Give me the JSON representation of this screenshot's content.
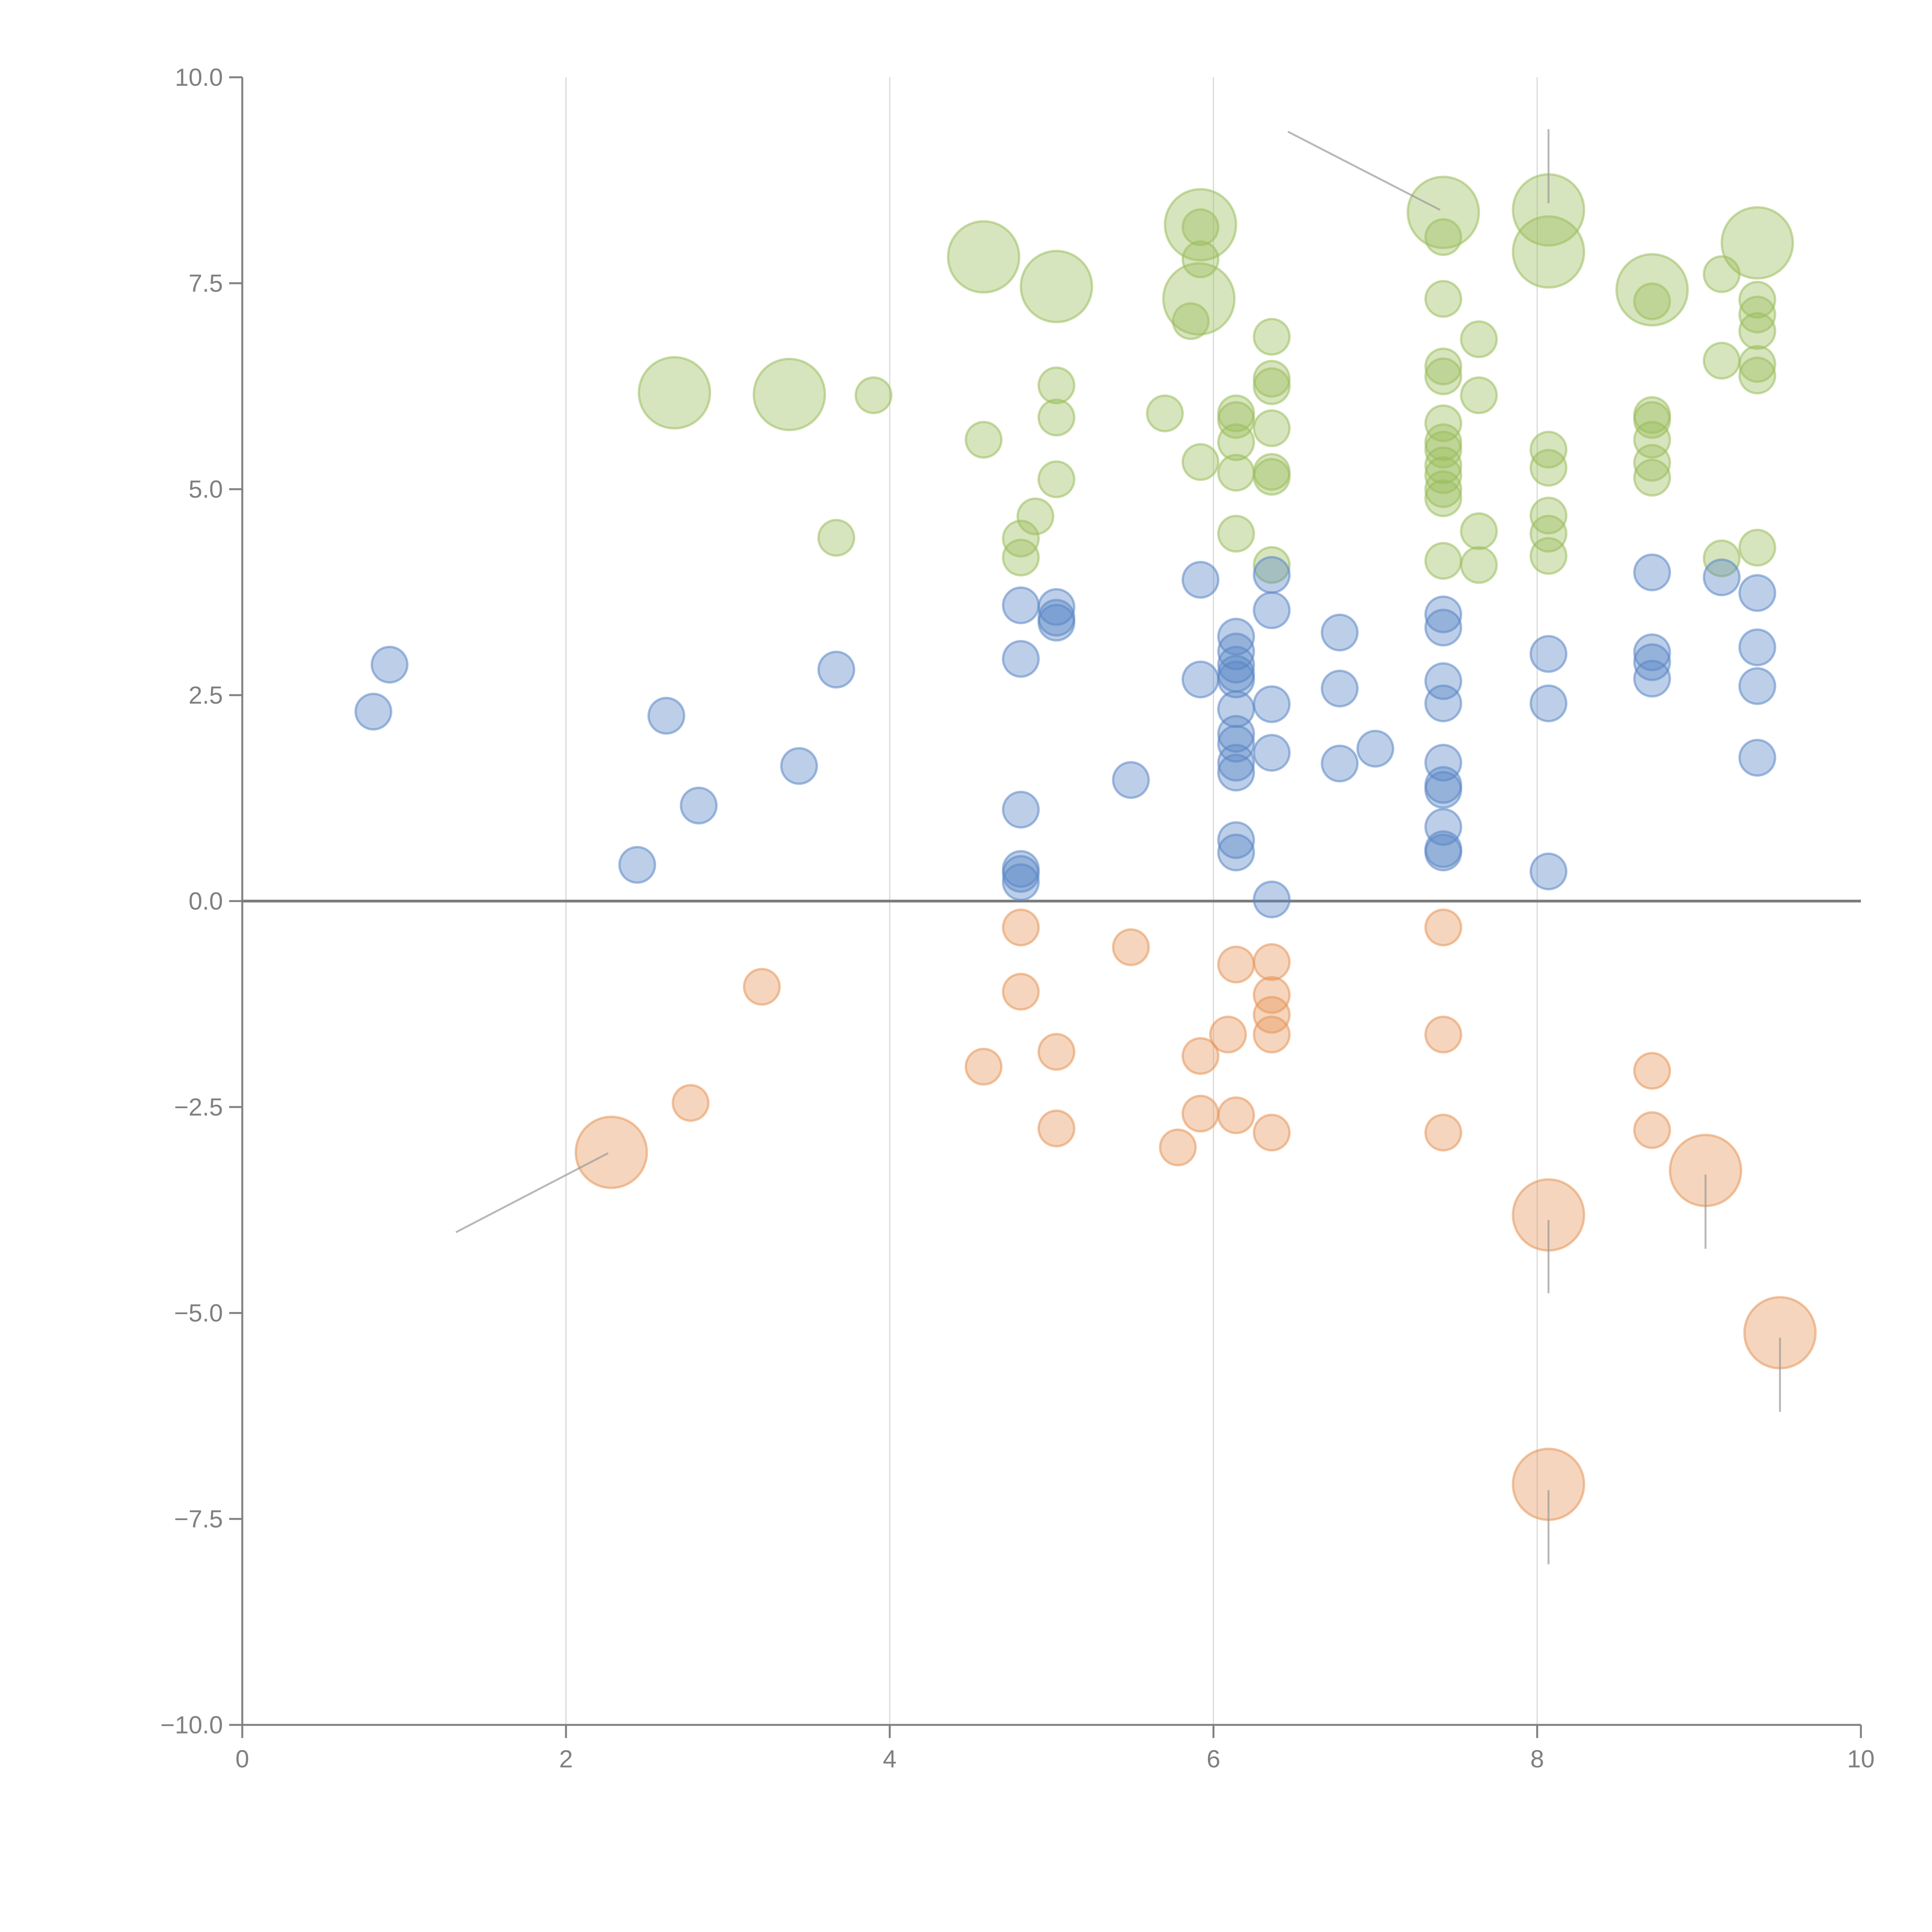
{
  "chart_data": {
    "type": "scatter",
    "title": "",
    "xlabel": "",
    "ylabel": "",
    "xlim": [
      0,
      10
    ],
    "ylim": [
      -10,
      10
    ],
    "grid": "vertical",
    "xticks": [
      "0",
      "2",
      "4",
      "6",
      "8",
      "10"
    ],
    "xtick_values": [
      0,
      2,
      4,
      6,
      8,
      10
    ],
    "yticks": [
      "10.0",
      "7.5",
      "5.0",
      "2.5",
      "0.0",
      "−2.5",
      "−5.0",
      "−7.5",
      "−10.0"
    ],
    "ytick_values": [
      10,
      7.5,
      5,
      2.5,
      0,
      -2.5,
      -5,
      -7.5,
      -10
    ],
    "series": [
      {
        "name": "green",
        "color": "#9bbe5c",
        "points": [
          [
            2.67,
            6.17,
            4
          ],
          [
            3.38,
            6.15,
            4
          ],
          [
            4.58,
            7.82,
            4
          ],
          [
            5.03,
            7.46,
            4
          ],
          [
            5.92,
            8.21,
            4
          ],
          [
            5.91,
            7.31,
            4
          ],
          [
            7.42,
            8.36,
            4
          ],
          [
            8.07,
            8.39,
            4
          ],
          [
            8.07,
            7.88,
            4
          ],
          [
            8.71,
            7.42,
            4
          ],
          [
            9.36,
            7.99,
            4
          ],
          [
            3.9,
            6.14,
            1
          ],
          [
            3.67,
            4.41,
            1
          ],
          [
            4.58,
            5.6,
            1
          ],
          [
            4.81,
            4.4,
            1
          ],
          [
            4.81,
            4.17,
            1
          ],
          [
            4.9,
            4.67,
            1
          ],
          [
            5.03,
            6.26,
            1
          ],
          [
            5.03,
            5.87,
            1
          ],
          [
            5.03,
            5.12,
            1
          ],
          [
            5.7,
            5.92,
            1
          ],
          [
            5.92,
            8.18,
            1
          ],
          [
            5.92,
            7.79,
            1
          ],
          [
            5.86,
            7.04,
            1
          ],
          [
            5.92,
            5.33,
            1
          ],
          [
            6.14,
            5.92,
            1
          ],
          [
            6.14,
            5.84,
            1
          ],
          [
            6.14,
            5.57,
            1
          ],
          [
            6.14,
            5.2,
            1
          ],
          [
            6.14,
            4.46,
            1
          ],
          [
            6.36,
            6.85,
            1
          ],
          [
            6.36,
            6.34,
            1
          ],
          [
            6.36,
            6.25,
            1
          ],
          [
            6.36,
            5.74,
            1
          ],
          [
            6.36,
            5.21,
            1
          ],
          [
            6.36,
            5.15,
            1
          ],
          [
            6.36,
            4.08,
            1
          ],
          [
            7.42,
            8.06,
            1
          ],
          [
            7.42,
            7.31,
            1
          ],
          [
            7.42,
            6.49,
            1
          ],
          [
            7.42,
            6.37,
            1
          ],
          [
            7.42,
            5.8,
            1
          ],
          [
            7.42,
            5.57,
            1
          ],
          [
            7.42,
            5.48,
            1
          ],
          [
            7.42,
            5.29,
            1
          ],
          [
            7.42,
            5.17,
            1
          ],
          [
            7.42,
            5.0,
            1
          ],
          [
            7.42,
            4.89,
            1
          ],
          [
            7.42,
            4.13,
            1
          ],
          [
            7.64,
            6.82,
            1
          ],
          [
            7.64,
            6.14,
            1
          ],
          [
            7.64,
            4.49,
            1
          ],
          [
            7.64,
            4.08,
            1
          ],
          [
            8.07,
            5.48,
            1
          ],
          [
            8.07,
            5.26,
            1
          ],
          [
            8.07,
            4.68,
            1
          ],
          [
            8.07,
            4.46,
            1
          ],
          [
            8.07,
            4.19,
            1
          ],
          [
            8.71,
            7.28,
            1
          ],
          [
            8.71,
            5.9,
            1
          ],
          [
            8.71,
            5.84,
            1
          ],
          [
            8.71,
            5.6,
            1
          ],
          [
            8.71,
            5.32,
            1
          ],
          [
            8.71,
            5.14,
            1
          ],
          [
            9.14,
            7.61,
            1
          ],
          [
            9.14,
            6.56,
            1
          ],
          [
            9.14,
            4.16,
            1
          ],
          [
            9.36,
            7.3,
            1
          ],
          [
            9.36,
            7.12,
            1
          ],
          [
            9.36,
            6.92,
            1
          ],
          [
            9.36,
            6.52,
            1
          ],
          [
            9.36,
            6.38,
            1
          ],
          [
            9.36,
            4.29,
            1
          ]
        ]
      },
      {
        "name": "blue",
        "color": "#5b87c6",
        "points": [
          [
            0.81,
            2.3,
            1
          ],
          [
            0.91,
            2.87,
            1
          ],
          [
            2.44,
            0.44,
            1
          ],
          [
            2.62,
            2.25,
            1
          ],
          [
            2.82,
            1.16,
            1
          ],
          [
            3.44,
            1.64,
            1
          ],
          [
            3.67,
            2.81,
            1
          ],
          [
            4.81,
            3.59,
            1
          ],
          [
            4.81,
            2.94,
            1
          ],
          [
            4.81,
            1.11,
            1
          ],
          [
            4.81,
            0.39,
            1
          ],
          [
            4.81,
            0.33,
            1
          ],
          [
            4.81,
            0.23,
            1
          ],
          [
            5.03,
            3.57,
            1
          ],
          [
            5.03,
            3.44,
            1
          ],
          [
            5.03,
            3.38,
            1
          ],
          [
            5.49,
            1.47,
            1
          ],
          [
            5.92,
            3.9,
            1
          ],
          [
            5.92,
            2.69,
            1
          ],
          [
            6.14,
            3.21,
            1
          ],
          [
            6.14,
            3.03,
            1
          ],
          [
            6.14,
            2.87,
            1
          ],
          [
            6.14,
            2.76,
            1
          ],
          [
            6.14,
            2.69,
            1
          ],
          [
            6.14,
            2.33,
            1
          ],
          [
            6.14,
            2.03,
            1
          ],
          [
            6.14,
            1.91,
            1
          ],
          [
            6.14,
            1.68,
            1
          ],
          [
            6.14,
            1.56,
            1
          ],
          [
            6.14,
            0.74,
            1
          ],
          [
            6.14,
            0.59,
            1
          ],
          [
            6.36,
            3.96,
            1
          ],
          [
            6.36,
            3.53,
            1
          ],
          [
            6.36,
            2.39,
            1
          ],
          [
            6.36,
            1.8,
            1
          ],
          [
            6.36,
            0.02,
            1
          ],
          [
            6.78,
            3.26,
            1
          ],
          [
            6.78,
            2.58,
            1
          ],
          [
            6.78,
            1.67,
            1
          ],
          [
            7.0,
            1.85,
            1
          ],
          [
            7.42,
            3.48,
            1
          ],
          [
            7.42,
            3.32,
            1
          ],
          [
            7.42,
            2.67,
            1
          ],
          [
            7.42,
            2.4,
            1
          ],
          [
            7.42,
            1.68,
            1
          ],
          [
            7.42,
            1.41,
            1
          ],
          [
            7.42,
            1.35,
            1
          ],
          [
            7.42,
            0.9,
            1
          ],
          [
            7.42,
            0.63,
            1
          ],
          [
            7.42,
            0.59,
            1
          ],
          [
            8.07,
            3.0,
            1
          ],
          [
            8.07,
            2.4,
            1
          ],
          [
            8.07,
            0.36,
            1
          ],
          [
            8.71,
            3.99,
            1
          ],
          [
            8.71,
            3.02,
            1
          ],
          [
            8.71,
            2.9,
            1
          ],
          [
            8.71,
            2.7,
            1
          ],
          [
            9.14,
            3.93,
            1
          ],
          [
            9.36,
            3.74,
            1
          ],
          [
            9.36,
            3.08,
            1
          ],
          [
            9.36,
            2.61,
            1
          ],
          [
            9.36,
            1.74,
            1
          ]
        ]
      },
      {
        "name": "orange",
        "color": "#e5965a",
        "points": [
          [
            2.28,
            -3.05,
            4
          ],
          [
            8.07,
            -3.81,
            4
          ],
          [
            9.04,
            -3.27,
            4
          ],
          [
            9.5,
            -5.24,
            4
          ],
          [
            8.07,
            -7.08,
            4
          ],
          [
            2.77,
            -2.45,
            1
          ],
          [
            3.21,
            -1.04,
            1
          ],
          [
            4.58,
            -2.01,
            1
          ],
          [
            4.81,
            -0.32,
            1
          ],
          [
            4.81,
            -1.1,
            1
          ],
          [
            5.03,
            -1.83,
            1
          ],
          [
            5.03,
            -2.76,
            1
          ],
          [
            5.49,
            -0.56,
            1
          ],
          [
            5.78,
            -2.99,
            1
          ],
          [
            5.92,
            -1.88,
            1
          ],
          [
            5.92,
            -2.58,
            1
          ],
          [
            6.09,
            -1.62,
            1
          ],
          [
            6.14,
            -0.77,
            1
          ],
          [
            6.14,
            -2.6,
            1
          ],
          [
            6.36,
            -0.74,
            1
          ],
          [
            6.36,
            -1.14,
            1
          ],
          [
            6.36,
            -1.38,
            1
          ],
          [
            6.36,
            -1.62,
            1
          ],
          [
            6.36,
            -2.81,
            1
          ],
          [
            7.42,
            -0.32,
            1
          ],
          [
            7.42,
            -1.62,
            1
          ],
          [
            7.42,
            -2.81,
            1
          ],
          [
            8.71,
            -2.06,
            1
          ],
          [
            8.71,
            -2.78,
            1
          ]
        ]
      }
    ],
    "leader_lines": [
      [
        6.46,
        9.34,
        7.4,
        8.39
      ],
      [
        8.07,
        9.37,
        8.07,
        8.47
      ],
      [
        1.32,
        -4.02,
        2.26,
        -3.06
      ],
      [
        8.07,
        -3.87,
        8.07,
        -4.76
      ],
      [
        9.04,
        -3.32,
        9.04,
        -4.22
      ],
      [
        9.5,
        -5.3,
        9.5,
        -6.2
      ],
      [
        8.07,
        -7.15,
        8.07,
        -8.05
      ]
    ]
  }
}
